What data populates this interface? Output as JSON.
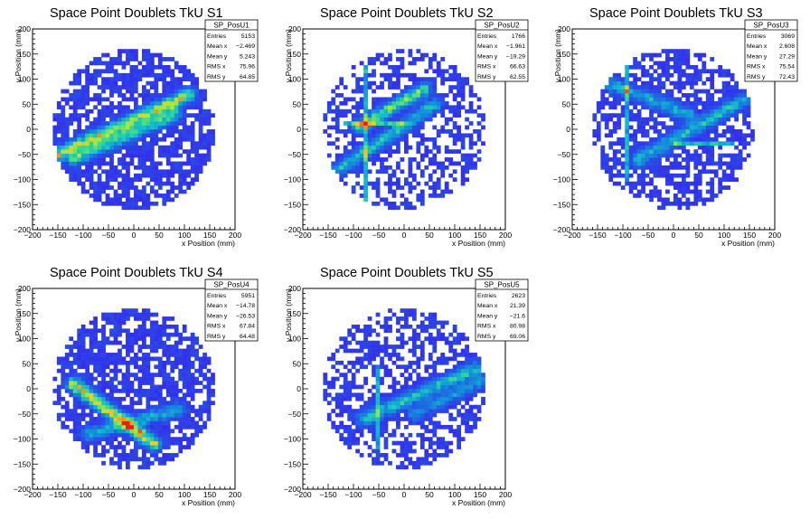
{
  "chart_data": [
    {
      "type": "heatmap",
      "title": "Space Point Doublets TkU S1",
      "xlabel": "x Position (mm)",
      "ylabel": "y Position (mm)",
      "xlim": [
        -200,
        200
      ],
      "ylim": [
        -200,
        200
      ],
      "xticks": [
        -200,
        -150,
        -100,
        -50,
        0,
        50,
        100,
        150,
        200
      ],
      "yticks": [
        -200,
        -150,
        -100,
        -50,
        0,
        50,
        100,
        150,
        200
      ],
      "stats": {
        "name": "SP_PosU1",
        "rows": [
          {
            "label": "Entries",
            "value": "5153"
          },
          {
            "label": "Mean x",
            "value": "−2.469"
          },
          {
            "label": "Mean y",
            "value": "5.243"
          },
          {
            "label": "RMS x",
            "value": "75.96"
          },
          {
            "label": "RMS y",
            "value": "64.85"
          }
        ]
      },
      "disk_radius": 160,
      "fill_fraction": 0.7,
      "bands": [
        {
          "x1": -150,
          "y1": -50,
          "x2": 110,
          "y2": 70,
          "peak": 0.85
        },
        {
          "x1": -120,
          "y1": -60,
          "x2": 80,
          "y2": 30,
          "peak": 0.6
        }
      ],
      "lines": []
    },
    {
      "type": "heatmap",
      "title": "Space Point Doublets TkU S2",
      "xlabel": "x Position (mm)",
      "ylabel": "y Position (mm)",
      "xlim": [
        -200,
        200
      ],
      "ylim": [
        -200,
        200
      ],
      "xticks": [
        -200,
        -150,
        -100,
        -50,
        0,
        50,
        100,
        150,
        200
      ],
      "yticks": [
        -200,
        -150,
        -100,
        -50,
        0,
        50,
        100,
        150,
        200
      ],
      "stats": {
        "name": "SP_PosU2",
        "rows": [
          {
            "label": "Entries",
            "value": "1766"
          },
          {
            "label": "Mean x",
            "value": "−1.961"
          },
          {
            "label": "Mean y",
            "value": "−19.29"
          },
          {
            "label": "RMS x",
            "value": "66.63"
          },
          {
            "label": "RMS y",
            "value": "62.55"
          }
        ]
      },
      "disk_radius": 160,
      "fill_fraction": 0.5,
      "bands": [
        {
          "x1": -130,
          "y1": -80,
          "x2": 60,
          "y2": 50,
          "peak": 0.5
        },
        {
          "x1": -90,
          "y1": 5,
          "x2": 40,
          "y2": 80,
          "peak": 0.7
        }
      ],
      "lines": [
        {
          "orientation": "v",
          "pos": -75,
          "from": -140,
          "to": 130
        },
        {
          "orientation": "h",
          "pos": 15,
          "from": -120,
          "to": 0
        }
      ]
    },
    {
      "type": "heatmap",
      "title": "Space Point Doublets TkU S3",
      "xlabel": "x Position (mm)",
      "ylabel": "y Position (mm)",
      "xlim": [
        -200,
        200
      ],
      "ylim": [
        -200,
        200
      ],
      "xticks": [
        -200,
        -150,
        -100,
        -50,
        0,
        50,
        100,
        150,
        200
      ],
      "yticks": [
        -200,
        -150,
        -100,
        -50,
        0,
        50,
        100,
        150,
        200
      ],
      "stats": {
        "name": "SP_PosU3",
        "rows": [
          {
            "label": "Entries",
            "value": "3069"
          },
          {
            "label": "Mean x",
            "value": "2.608"
          },
          {
            "label": "Mean y",
            "value": "27.29"
          },
          {
            "label": "RMS x",
            "value": "75.54"
          },
          {
            "label": "RMS y",
            "value": "72.43"
          }
        ]
      },
      "disk_radius": 160,
      "fill_fraction": 0.62,
      "bands": [
        {
          "x1": -70,
          "y1": -60,
          "x2": 140,
          "y2": 60,
          "peak": 0.5
        },
        {
          "x1": -150,
          "y1": 100,
          "x2": 30,
          "y2": 30,
          "peak": 0.45
        }
      ],
      "lines": [
        {
          "orientation": "v",
          "pos": -95,
          "from": -100,
          "to": 140
        },
        {
          "orientation": "h",
          "pos": -25,
          "from": 0,
          "to": 120
        }
      ]
    },
    {
      "type": "heatmap",
      "title": "Space Point Doublets TkU S4",
      "xlabel": "x Position (mm)",
      "ylabel": "y Position (mm)",
      "xlim": [
        -200,
        200
      ],
      "ylim": [
        -200,
        200
      ],
      "xticks": [
        -200,
        -150,
        -100,
        -50,
        0,
        50,
        100,
        150,
        200
      ],
      "yticks": [
        -200,
        -150,
        -100,
        -50,
        0,
        50,
        100,
        150,
        200
      ],
      "stats": {
        "name": "SP_PosU4",
        "rows": [
          {
            "label": "Entries",
            "value": "5951"
          },
          {
            "label": "Mean x",
            "value": "−14.78"
          },
          {
            "label": "Mean y",
            "value": "−26.53"
          },
          {
            "label": "RMS x",
            "value": "67.84"
          },
          {
            "label": "RMS y",
            "value": "64.48"
          }
        ]
      },
      "disk_radius": 160,
      "fill_fraction": 0.72,
      "bands": [
        {
          "x1": -120,
          "y1": 10,
          "x2": 40,
          "y2": -110,
          "peak": 0.9
        },
        {
          "x1": -90,
          "y1": -90,
          "x2": 90,
          "y2": -40,
          "peak": 0.45
        }
      ],
      "lines": []
    },
    {
      "type": "heatmap",
      "title": "Space Point Doublets TkU S5",
      "xlabel": "x Position (mm)",
      "ylabel": "y Position (mm)",
      "xlim": [
        -200,
        200
      ],
      "ylim": [
        -200,
        200
      ],
      "xticks": [
        -200,
        -150,
        -100,
        -50,
        0,
        50,
        100,
        150,
        200
      ],
      "yticks": [
        -200,
        -150,
        -100,
        -50,
        0,
        50,
        100,
        150,
        200
      ],
      "stats": {
        "name": "SP_PosU5",
        "rows": [
          {
            "label": "Entries",
            "value": "2623"
          },
          {
            "label": "Mean x",
            "value": "21.39"
          },
          {
            "label": "Mean y",
            "value": "−21.6"
          },
          {
            "label": "RMS x",
            "value": "80.98"
          },
          {
            "label": "RMS y",
            "value": "69.06"
          }
        ]
      },
      "disk_radius": 160,
      "fill_fraction": 0.55,
      "bands": [
        {
          "x1": -80,
          "y1": -60,
          "x2": 140,
          "y2": 40,
          "peak": 0.55
        },
        {
          "x1": 20,
          "y1": -50,
          "x2": 160,
          "y2": 20,
          "peak": 0.35
        }
      ],
      "lines": [
        {
          "orientation": "v",
          "pos": -55,
          "from": -120,
          "to": 50
        }
      ]
    }
  ]
}
